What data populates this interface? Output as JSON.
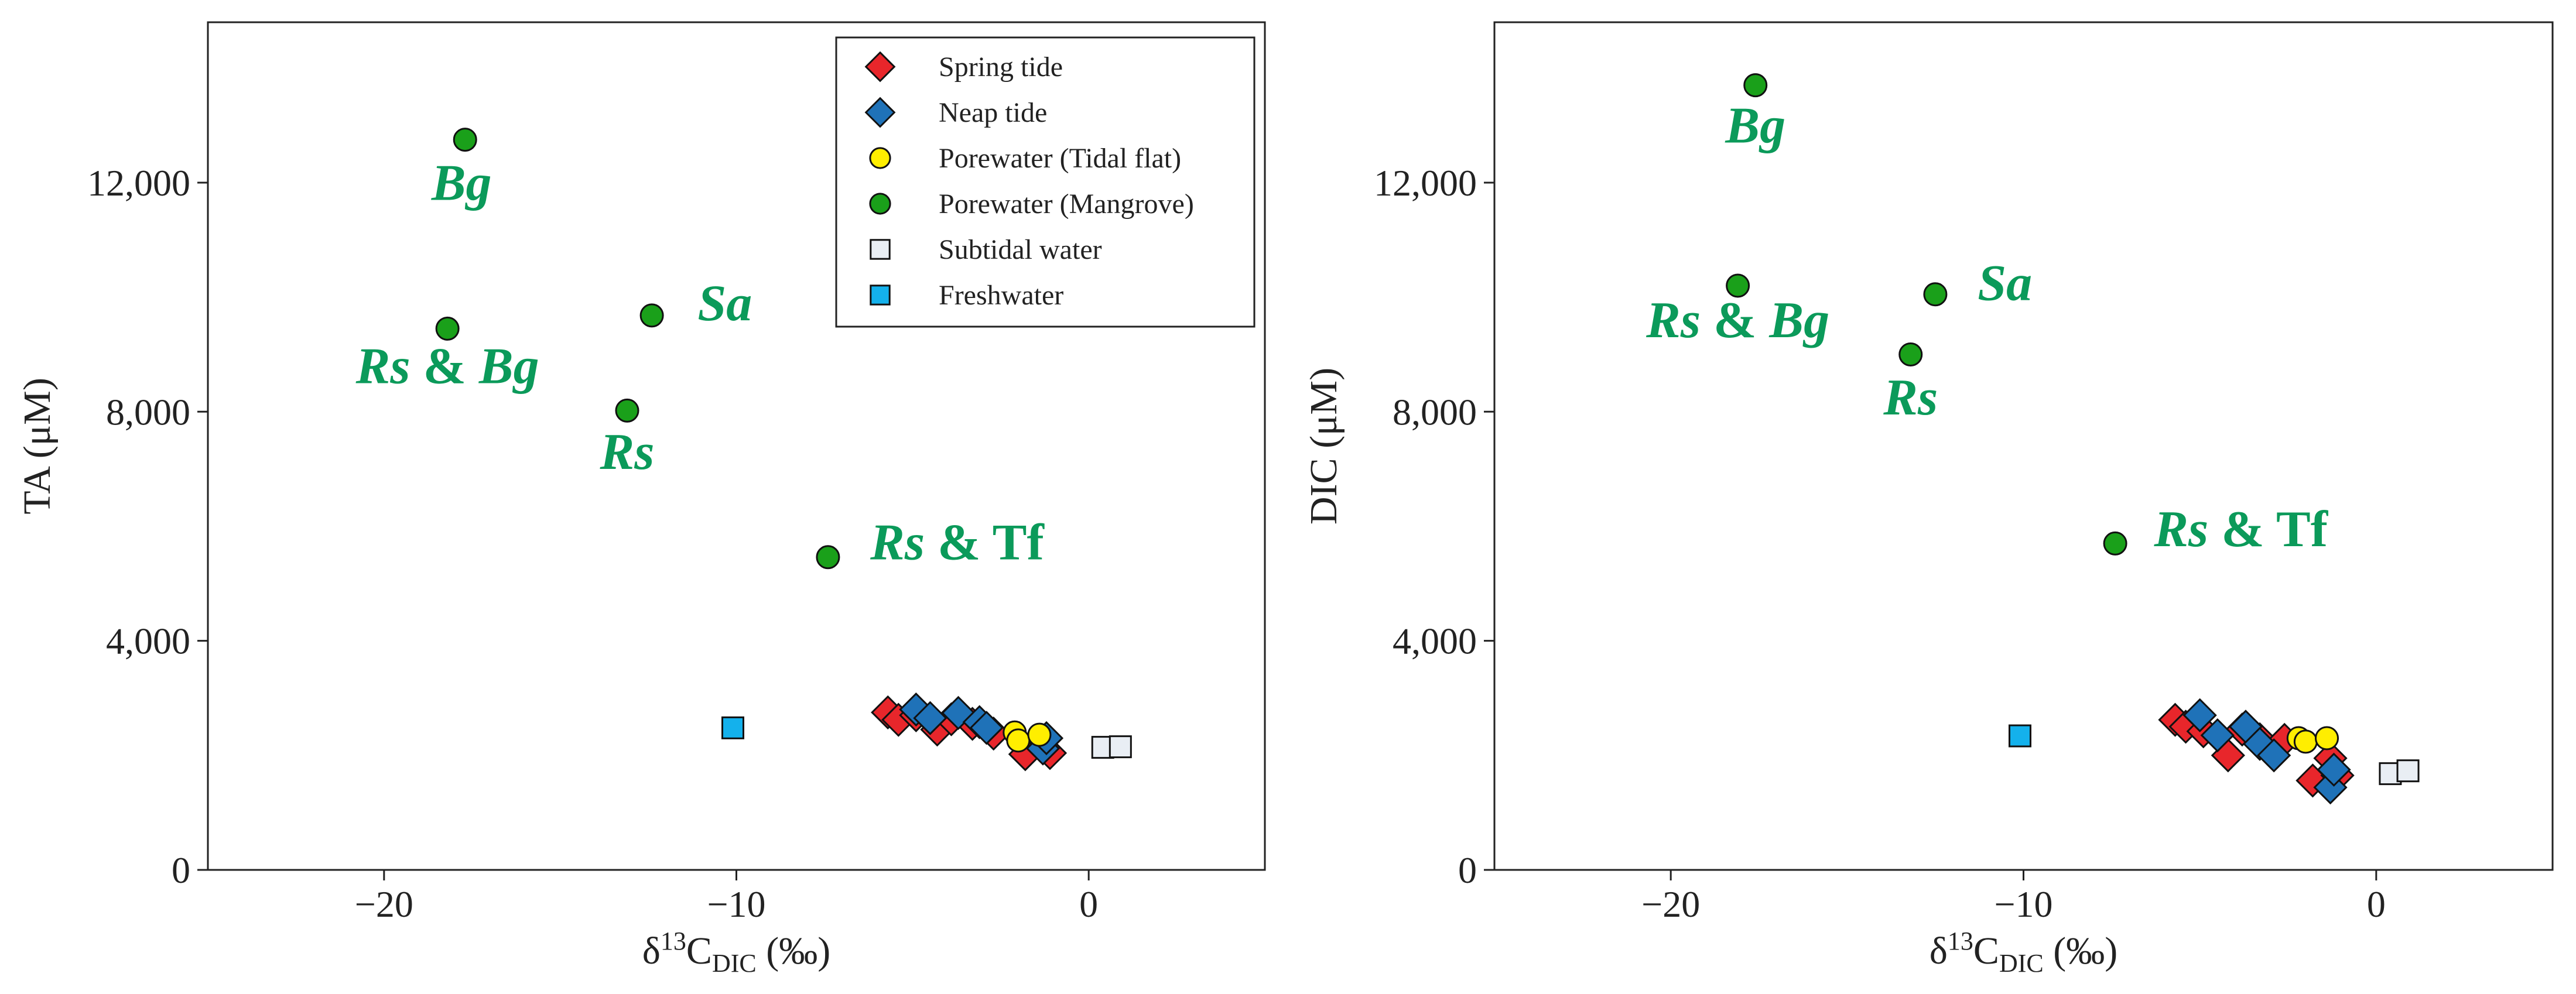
{
  "colors": {
    "spring": "#e8262b",
    "neap": "#1f72b8",
    "tidal_flat": "#ffee00",
    "mangrove": "#1aa01a",
    "subtidal": "#e9eef4",
    "freshwater": "#14b1ec",
    "site_label": "#0b9a5a",
    "axis": "#222222"
  },
  "legend": [
    {
      "key": "spring",
      "label": "Spring tide",
      "marker": "diamond"
    },
    {
      "key": "neap",
      "label": "Neap tide",
      "marker": "diamond"
    },
    {
      "key": "tidal_flat",
      "label": "Porewater (Tidal flat)",
      "marker": "circle"
    },
    {
      "key": "mangrove",
      "label": "Porewater (Mangrove)",
      "marker": "circle"
    },
    {
      "key": "subtidal",
      "label": "Subtidal water",
      "marker": "square"
    },
    {
      "key": "freshwater",
      "label": "Freshwater",
      "marker": "square"
    }
  ],
  "chart_data": [
    {
      "type": "scatter",
      "title": "",
      "xlabel": "δ13C_DIC (‰)",
      "ylabel": "TA (μM)",
      "xlim": [
        -25,
        5
      ],
      "ylim": [
        0,
        14800
      ],
      "x_ticks": [
        -20,
        -10,
        0
      ],
      "x_tick_labels": [
        "−20",
        "−10",
        "0"
      ],
      "y_ticks": [
        0,
        4000,
        8000,
        12000
      ],
      "y_tick_labels": [
        "0",
        "4,000",
        "8,000",
        "12,000"
      ],
      "legend_position": "top-right",
      "grid": false,
      "series": [
        {
          "name": "Spring tide",
          "key": "spring",
          "marker": "diamond",
          "points": [
            [
              -5.7,
              2750
            ],
            [
              -5.4,
              2620
            ],
            [
              -4.9,
              2700
            ],
            [
              -4.3,
              2450
            ],
            [
              -3.9,
              2630
            ],
            [
              -3.3,
              2550
            ],
            [
              -2.7,
              2380
            ],
            [
              -1.8,
              2020
            ],
            [
              -1.1,
              2040
            ]
          ]
        },
        {
          "name": "Neap tide",
          "key": "neap",
          "marker": "diamond",
          "points": [
            [
              -4.9,
              2800
            ],
            [
              -4.5,
              2650
            ],
            [
              -3.7,
              2740
            ],
            [
              -3.1,
              2580
            ],
            [
              -2.9,
              2480
            ],
            [
              -1.3,
              2120
            ],
            [
              -1.2,
              2300
            ]
          ]
        },
        {
          "name": "Porewater (Tidal flat)",
          "key": "tidal_flat",
          "marker": "circle",
          "points": [
            [
              -2.1,
              2400
            ],
            [
              -2.0,
              2260
            ],
            [
              -1.4,
              2360
            ]
          ]
        },
        {
          "name": "Porewater (Mangrove)",
          "key": "mangrove",
          "marker": "circle",
          "points": [
            [
              -17.7,
              12750
            ],
            [
              -18.2,
              9450
            ],
            [
              -12.4,
              9680
            ],
            [
              -13.1,
              8020
            ],
            [
              -7.4,
              5460
            ]
          ]
        },
        {
          "name": "Subtidal water",
          "key": "subtidal",
          "marker": "square",
          "points": [
            [
              0.4,
              2140
            ],
            [
              0.9,
              2150
            ]
          ]
        },
        {
          "name": "Freshwater",
          "key": "freshwater",
          "marker": "square",
          "points": [
            [
              -10.1,
              2480
            ]
          ]
        }
      ],
      "annotations": [
        {
          "label": [
            {
              "text": "Bg",
              "italic": true
            }
          ],
          "x": -17.8,
          "y": 11700,
          "anchor": "middle"
        },
        {
          "label": [
            {
              "text": "Rs",
              "italic": true
            },
            {
              "text": " & ",
              "italic": false
            },
            {
              "text": "Bg",
              "italic": true
            }
          ],
          "x": -18.2,
          "y": 8500,
          "anchor": "middle"
        },
        {
          "label": [
            {
              "text": "Sa",
              "italic": true
            }
          ],
          "x": -11.1,
          "y": 9600,
          "anchor": "start"
        },
        {
          "label": [
            {
              "text": "Rs",
              "italic": true
            }
          ],
          "x": -13.1,
          "y": 7000,
          "anchor": "middle"
        },
        {
          "label": [
            {
              "text": "Rs",
              "italic": true
            },
            {
              "text": " & Tf",
              "italic": false
            }
          ],
          "x": -6.2,
          "y": 5420,
          "anchor": "start"
        }
      ]
    },
    {
      "type": "scatter",
      "title": "",
      "xlabel": "δ13C_DIC (‰)",
      "ylabel": "DIC (μM)",
      "xlim": [
        -25,
        5
      ],
      "ylim": [
        0,
        14800
      ],
      "x_ticks": [
        -20,
        -10,
        0
      ],
      "x_tick_labels": [
        "−20",
        "−10",
        "0"
      ],
      "y_ticks": [
        0,
        4000,
        8000,
        12000
      ],
      "y_tick_labels": [
        "0",
        "4,000",
        "8,000",
        "12,000"
      ],
      "legend_position": "none",
      "grid": false,
      "series": [
        {
          "name": "Spring tide",
          "key": "spring",
          "marker": "diamond",
          "points": [
            [
              -5.7,
              2620
            ],
            [
              -5.4,
              2500
            ],
            [
              -4.9,
              2420
            ],
            [
              -4.2,
              2000
            ],
            [
              -3.8,
              2450
            ],
            [
              -3.3,
              2280
            ],
            [
              -2.6,
              2270
            ],
            [
              -1.8,
              1560
            ],
            [
              -1.1,
              1650
            ],
            [
              -1.3,
              1950
            ]
          ]
        },
        {
          "name": "Neap tide",
          "key": "neap",
          "marker": "diamond",
          "points": [
            [
              -5.0,
              2700
            ],
            [
              -4.5,
              2350
            ],
            [
              -3.7,
              2500
            ],
            [
              -3.3,
              2200
            ],
            [
              -2.9,
              2000
            ],
            [
              -1.3,
              1440
            ],
            [
              -1.2,
              1750
            ]
          ]
        },
        {
          "name": "Porewater (Tidal flat)",
          "key": "tidal_flat",
          "marker": "circle",
          "points": [
            [
              -2.2,
              2300
            ],
            [
              -2.0,
              2240
            ],
            [
              -1.4,
              2300
            ]
          ]
        },
        {
          "name": "Porewater (Mangrove)",
          "key": "mangrove",
          "marker": "circle",
          "points": [
            [
              -17.6,
              13700
            ],
            [
              -18.1,
              10200
            ],
            [
              -12.5,
              10050
            ],
            [
              -13.2,
              9000
            ],
            [
              -7.4,
              5700
            ]
          ]
        },
        {
          "name": "Subtidal water",
          "key": "subtidal",
          "marker": "square",
          "points": [
            [
              0.4,
              1680
            ],
            [
              0.9,
              1730
            ]
          ]
        },
        {
          "name": "Freshwater",
          "key": "freshwater",
          "marker": "square",
          "points": [
            [
              -10.1,
              2340
            ]
          ]
        }
      ],
      "annotations": [
        {
          "label": [
            {
              "text": "Bg",
              "italic": true
            }
          ],
          "x": -17.6,
          "y": 12700,
          "anchor": "middle"
        },
        {
          "label": [
            {
              "text": "Rs",
              "italic": true
            },
            {
              "text": " & ",
              "italic": false
            },
            {
              "text": "Bg",
              "italic": true
            }
          ],
          "x": -18.1,
          "y": 9300,
          "anchor": "middle"
        },
        {
          "label": [
            {
              "text": "Sa",
              "italic": true
            }
          ],
          "x": -11.3,
          "y": 9950,
          "anchor": "start"
        },
        {
          "label": [
            {
              "text": "Rs",
              "italic": true
            }
          ],
          "x": -13.2,
          "y": 7950,
          "anchor": "middle"
        },
        {
          "label": [
            {
              "text": "Rs",
              "italic": true
            },
            {
              "text": " & Tf",
              "italic": false
            }
          ],
          "x": -6.3,
          "y": 5650,
          "anchor": "start"
        }
      ]
    }
  ]
}
